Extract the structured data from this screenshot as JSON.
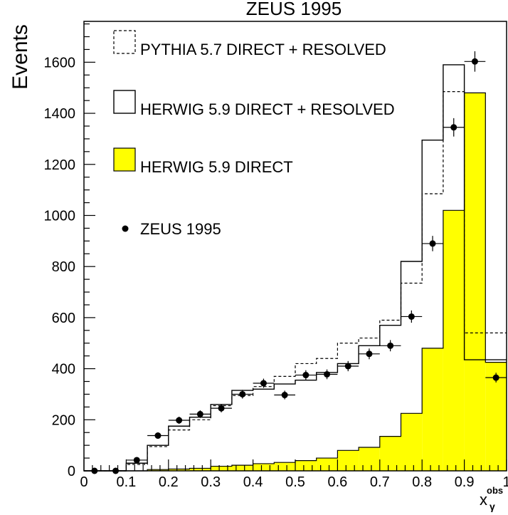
{
  "chart_data": {
    "type": "bar",
    "title": "ZEUS 1995",
    "ylabel": "Events",
    "xlabel_main": "x",
    "xlabel_sub": "γ",
    "xlabel_sup": "obs",
    "xlim": [
      0,
      1
    ],
    "ylim": [
      0,
      1760
    ],
    "x_ticks": [
      0,
      0.1,
      0.2,
      0.3,
      0.4,
      0.5,
      0.6,
      0.7,
      0.8,
      0.9,
      1
    ],
    "x_tick_labels": [
      "0",
      "0.1",
      "0.2",
      "0.3",
      "0.4",
      "0.5",
      "0.6",
      "0.7",
      "0.8",
      "0.9",
      "1"
    ],
    "y_ticks": [
      0,
      200,
      400,
      600,
      800,
      1000,
      1200,
      1400,
      1600
    ],
    "y_tick_labels": [
      "0",
      "200",
      "400",
      "600",
      "800",
      "1000",
      "1200",
      "1400",
      "1600"
    ],
    "bin_edges": [
      0,
      0.05,
      0.1,
      0.15,
      0.2,
      0.25,
      0.3,
      0.35,
      0.4,
      0.45,
      0.5,
      0.55,
      0.6,
      0.65,
      0.7,
      0.75,
      0.8,
      0.85,
      0.9,
      0.95,
      1.0
    ],
    "legend_position": "top-left",
    "series": [
      {
        "name": "PYTHIA 5.7 DIRECT + RESOLVED",
        "style": "dashed-histogram",
        "values": [
          0,
          0,
          25,
          95,
          160,
          200,
          255,
          295,
          330,
          370,
          420,
          440,
          500,
          520,
          590,
          735,
          1085,
          1485,
          540,
          540
        ]
      },
      {
        "name": "HERWIG 5.9 DIRECT + RESOLVED",
        "style": "solid-histogram",
        "values": [
          0,
          0,
          30,
          100,
          175,
          210,
          260,
          315,
          320,
          340,
          355,
          385,
          420,
          490,
          570,
          820,
          1295,
          1590,
          435,
          435
        ]
      },
      {
        "name": "HERWIG 5.9 DIRECT",
        "style": "filled-histogram",
        "values": [
          0,
          0,
          0,
          5,
          7,
          10,
          18,
          22,
          28,
          33,
          40,
          50,
          80,
          92,
          135,
          225,
          480,
          1020,
          1480,
          425
        ]
      },
      {
        "name": "ZEUS 1995",
        "style": "points",
        "x": [
          0.025,
          0.075,
          0.125,
          0.175,
          0.225,
          0.275,
          0.325,
          0.375,
          0.425,
          0.475,
          0.525,
          0.575,
          0.625,
          0.675,
          0.725,
          0.775,
          0.825,
          0.875,
          0.925,
          0.975
        ],
        "y": [
          0,
          0,
          42,
          138,
          198,
          222,
          245,
          300,
          343,
          297,
          375,
          378,
          410,
          458,
          490,
          604,
          890,
          1345,
          1603,
          365
        ],
        "yerr": [
          0,
          0,
          8,
          12,
          14,
          15,
          16,
          17,
          18,
          17,
          19,
          19,
          20,
          21,
          22,
          24,
          30,
          36,
          40,
          19
        ]
      }
    ],
    "colors": {
      "fill": "#ffff00",
      "line": "#000000",
      "background": "#ffffff"
    }
  }
}
